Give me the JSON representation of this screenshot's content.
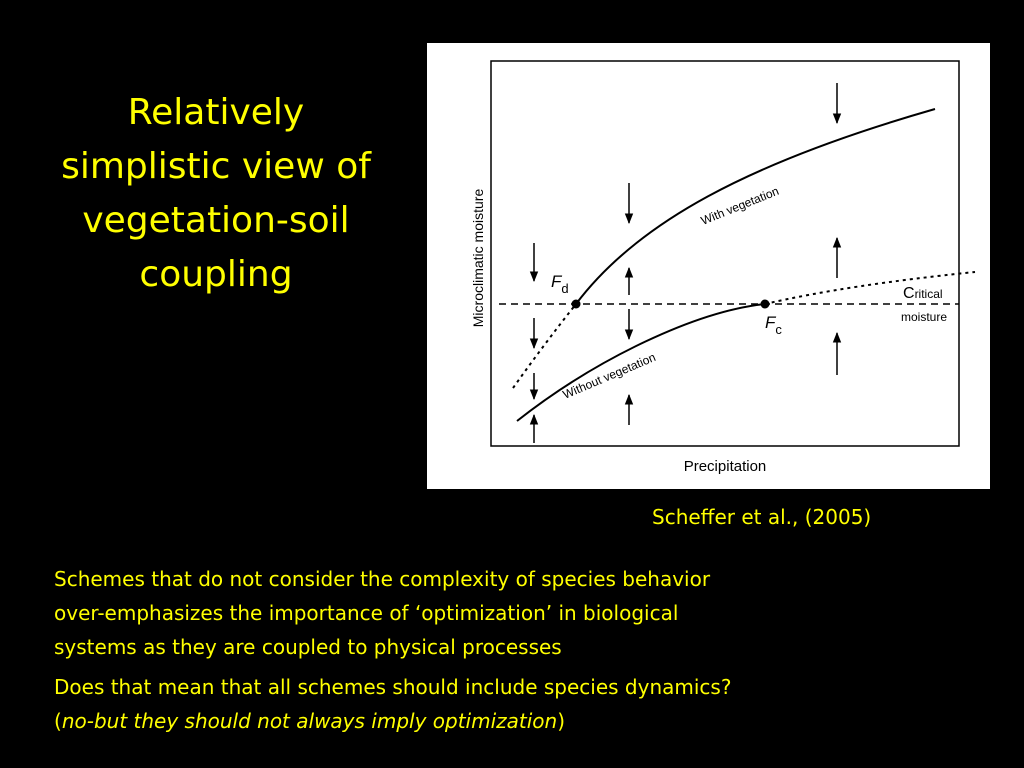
{
  "slide": {
    "title_lines": [
      "Relatively",
      "simplistic view of",
      "vegetation-soil",
      "coupling"
    ],
    "citation": "Scheffer et al., (2005)",
    "paragraph1_lines": [
      "Schemes that do not consider the complexity of species behavior",
      "over-emphasizes the importance of ‘optimization’ in biological",
      "systems as they are coupled to physical processes"
    ],
    "paragraph2": {
      "line1": "Does that mean that all schemes should include species dynamics?",
      "open_paren": "(",
      "italic": "no-but they should not always imply optimization",
      "close_paren": ")"
    },
    "colors": {
      "background": "#000000",
      "text": "#ffff00",
      "figure_bg": "#ffffff"
    }
  },
  "figure": {
    "x_axis_label": "Precipitation",
    "y_axis_label": "Microclimatic moisture",
    "curve_with_vegetation": "With vegetation",
    "curve_without_vegetation": "Without vegetation",
    "point_fd": {
      "symbol": "F",
      "subscript": "d"
    },
    "point_fc": {
      "symbol": "F",
      "subscript": "c"
    },
    "critical_line_label": {
      "initial": "C",
      "rest": "ritical",
      "line2": "moisture"
    }
  }
}
